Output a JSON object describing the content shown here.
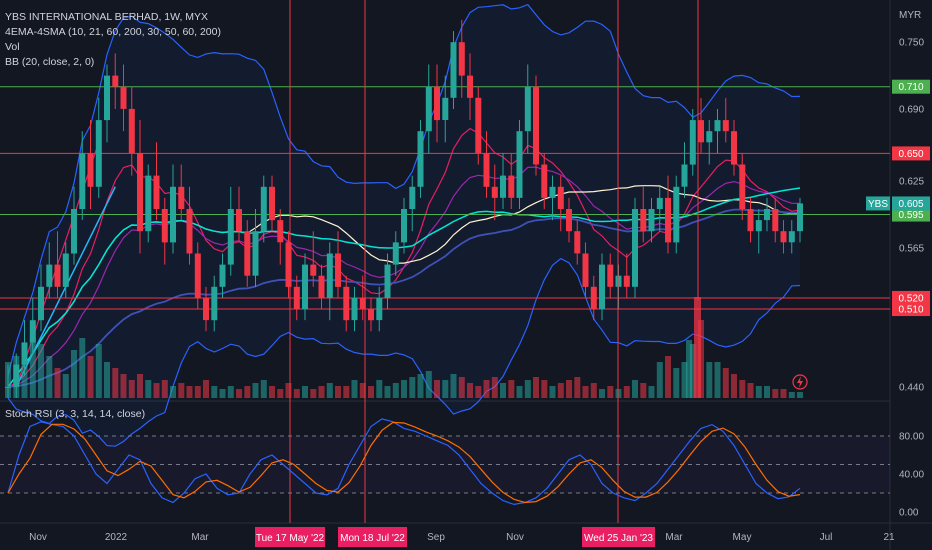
{
  "header": {
    "symbol_line": "YBS INTERNATIONAL BERHAD, 1W, MYX",
    "indicator_ema": "4EMA-4SMA (10, 21, 60, 200, 30, 50, 60, 200)",
    "indicator_vol": "Vol",
    "indicator_bb": "BB (20, close, 2, 0)",
    "indicator_rsi": "Stoch RSI (3, 3, 14, 14, close)"
  },
  "axis": {
    "currency": "MYR",
    "price_ticks": [
      "0.750",
      "0.690",
      "0.625",
      "0.565",
      "0.440"
    ],
    "rsi_ticks": [
      "80.00",
      "40.00",
      "0.00"
    ],
    "x_ticks": [
      "Nov",
      "2022",
      "Mar",
      "Sep",
      "Nov",
      "Mar",
      "May",
      "Jul",
      "21"
    ]
  },
  "levels": [
    {
      "label": "0.710",
      "color": "#4caf50"
    },
    {
      "label": "0.650",
      "color": "#f23645"
    },
    {
      "label": "0.595",
      "color": "#4caf50"
    },
    {
      "label": "0.520",
      "color": "#f23645"
    },
    {
      "label": "0.510",
      "color": "#f23645"
    }
  ],
  "last_price": {
    "symbol": "YBS",
    "value": "0.605"
  },
  "markers": [
    {
      "label": "Tue 17 May '22"
    },
    {
      "label": "Mon 18 Jul '22"
    },
    {
      "label": "Wed 25 Jan '23"
    }
  ],
  "colors": {
    "up": "#26a69a",
    "down": "#f23645",
    "bb": "#2962ff",
    "bg": "#131722"
  },
  "chart_data": {
    "type": "candlestick",
    "timeframe": "1W",
    "y_range": [
      0.43,
      0.77
    ],
    "candles": [
      [
        0.44,
        0.46,
        0.43,
        0.44
      ],
      [
        0.44,
        0.47,
        0.43,
        0.46
      ],
      [
        0.46,
        0.5,
        0.45,
        0.48
      ],
      [
        0.48,
        0.52,
        0.47,
        0.5
      ],
      [
        0.5,
        0.55,
        0.49,
        0.53
      ],
      [
        0.53,
        0.57,
        0.52,
        0.55
      ],
      [
        0.55,
        0.58,
        0.52,
        0.53
      ],
      [
        0.53,
        0.57,
        0.52,
        0.56
      ],
      [
        0.56,
        0.62,
        0.55,
        0.6
      ],
      [
        0.6,
        0.67,
        0.59,
        0.65
      ],
      [
        0.65,
        0.68,
        0.6,
        0.62
      ],
      [
        0.62,
        0.7,
        0.61,
        0.68
      ],
      [
        0.68,
        0.73,
        0.66,
        0.72
      ],
      [
        0.72,
        0.74,
        0.69,
        0.71
      ],
      [
        0.71,
        0.73,
        0.67,
        0.69
      ],
      [
        0.69,
        0.71,
        0.63,
        0.65
      ],
      [
        0.65,
        0.68,
        0.56,
        0.58
      ],
      [
        0.58,
        0.64,
        0.57,
        0.63
      ],
      [
        0.63,
        0.66,
        0.59,
        0.6
      ],
      [
        0.6,
        0.61,
        0.55,
        0.57
      ],
      [
        0.57,
        0.64,
        0.56,
        0.62
      ],
      [
        0.62,
        0.64,
        0.59,
        0.6
      ],
      [
        0.6,
        0.62,
        0.55,
        0.56
      ],
      [
        0.56,
        0.57,
        0.51,
        0.52
      ],
      [
        0.52,
        0.53,
        0.49,
        0.5
      ],
      [
        0.5,
        0.54,
        0.49,
        0.53
      ],
      [
        0.53,
        0.56,
        0.52,
        0.55
      ],
      [
        0.55,
        0.62,
        0.54,
        0.6
      ],
      [
        0.6,
        0.62,
        0.57,
        0.58
      ],
      [
        0.58,
        0.59,
        0.53,
        0.54
      ],
      [
        0.54,
        0.6,
        0.53,
        0.58
      ],
      [
        0.58,
        0.63,
        0.57,
        0.62
      ],
      [
        0.62,
        0.63,
        0.58,
        0.59
      ],
      [
        0.59,
        0.6,
        0.55,
        0.57
      ],
      [
        0.57,
        0.58,
        0.52,
        0.53
      ],
      [
        0.53,
        0.54,
        0.5,
        0.51
      ],
      [
        0.51,
        0.56,
        0.5,
        0.55
      ],
      [
        0.55,
        0.58,
        0.53,
        0.54
      ],
      [
        0.54,
        0.55,
        0.51,
        0.52
      ],
      [
        0.52,
        0.57,
        0.5,
        0.56
      ],
      [
        0.56,
        0.58,
        0.52,
        0.53
      ],
      [
        0.53,
        0.54,
        0.49,
        0.5
      ],
      [
        0.5,
        0.53,
        0.49,
        0.52
      ],
      [
        0.52,
        0.54,
        0.5,
        0.51
      ],
      [
        0.51,
        0.52,
        0.49,
        0.5
      ],
      [
        0.5,
        0.53,
        0.49,
        0.52
      ],
      [
        0.52,
        0.56,
        0.51,
        0.55
      ],
      [
        0.55,
        0.58,
        0.54,
        0.57
      ],
      [
        0.57,
        0.61,
        0.56,
        0.6
      ],
      [
        0.6,
        0.63,
        0.58,
        0.62
      ],
      [
        0.62,
        0.68,
        0.61,
        0.67
      ],
      [
        0.67,
        0.73,
        0.65,
        0.71
      ],
      [
        0.71,
        0.73,
        0.66,
        0.68
      ],
      [
        0.68,
        0.72,
        0.66,
        0.7
      ],
      [
        0.7,
        0.76,
        0.69,
        0.75
      ],
      [
        0.75,
        0.77,
        0.7,
        0.72
      ],
      [
        0.72,
        0.74,
        0.68,
        0.7
      ],
      [
        0.7,
        0.71,
        0.64,
        0.65
      ],
      [
        0.65,
        0.67,
        0.61,
        0.62
      ],
      [
        0.62,
        0.64,
        0.59,
        0.61
      ],
      [
        0.61,
        0.65,
        0.6,
        0.63
      ],
      [
        0.63,
        0.65,
        0.6,
        0.61
      ],
      [
        0.61,
        0.68,
        0.6,
        0.67
      ],
      [
        0.67,
        0.73,
        0.65,
        0.71
      ],
      [
        0.71,
        0.72,
        0.63,
        0.64
      ],
      [
        0.64,
        0.65,
        0.6,
        0.61
      ],
      [
        0.61,
        0.63,
        0.59,
        0.62
      ],
      [
        0.62,
        0.63,
        0.58,
        0.6
      ],
      [
        0.6,
        0.61,
        0.57,
        0.58
      ],
      [
        0.58,
        0.59,
        0.55,
        0.56
      ],
      [
        0.56,
        0.57,
        0.52,
        0.53
      ],
      [
        0.53,
        0.54,
        0.5,
        0.51
      ],
      [
        0.51,
        0.56,
        0.5,
        0.55
      ],
      [
        0.55,
        0.56,
        0.52,
        0.53
      ],
      [
        0.53,
        0.55,
        0.51,
        0.54
      ],
      [
        0.54,
        0.56,
        0.52,
        0.53
      ],
      [
        0.53,
        0.61,
        0.52,
        0.6
      ],
      [
        0.6,
        0.62,
        0.57,
        0.58
      ],
      [
        0.58,
        0.61,
        0.57,
        0.6
      ],
      [
        0.6,
        0.62,
        0.58,
        0.61
      ],
      [
        0.61,
        0.63,
        0.56,
        0.57
      ],
      [
        0.57,
        0.63,
        0.56,
        0.62
      ],
      [
        0.62,
        0.66,
        0.61,
        0.64
      ],
      [
        0.64,
        0.69,
        0.63,
        0.68
      ],
      [
        0.68,
        0.7,
        0.65,
        0.66
      ],
      [
        0.66,
        0.68,
        0.64,
        0.67
      ],
      [
        0.67,
        0.69,
        0.65,
        0.68
      ],
      [
        0.68,
        0.7,
        0.66,
        0.67
      ],
      [
        0.67,
        0.68,
        0.63,
        0.64
      ],
      [
        0.64,
        0.65,
        0.59,
        0.6
      ],
      [
        0.6,
        0.61,
        0.57,
        0.58
      ],
      [
        0.58,
        0.6,
        0.56,
        0.59
      ],
      [
        0.59,
        0.61,
        0.58,
        0.6
      ],
      [
        0.6,
        0.61,
        0.57,
        0.58
      ],
      [
        0.58,
        0.59,
        0.56,
        0.57
      ],
      [
        0.57,
        0.59,
        0.56,
        0.58
      ],
      [
        0.58,
        0.61,
        0.57,
        0.605
      ]
    ]
  }
}
